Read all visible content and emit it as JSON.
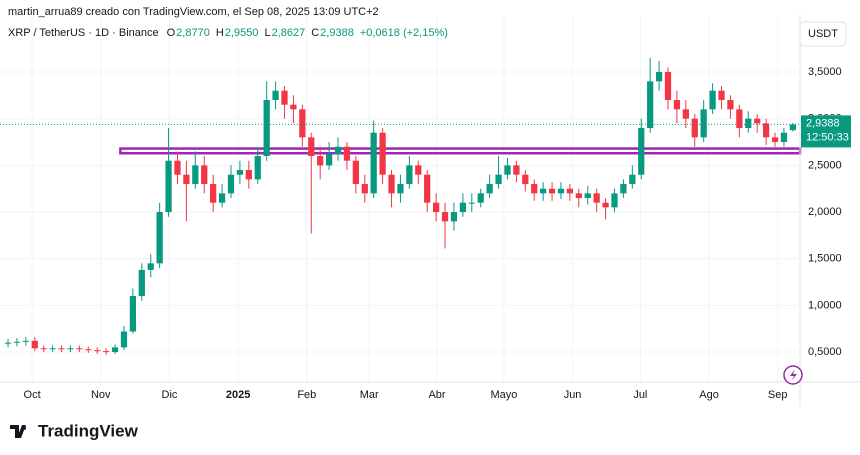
{
  "chart_data": {
    "type": "candlestick",
    "credit": "martin_arrua89 creado con TradingView.com, el Sep 08, 2025 13:09 UTC+2",
    "symbol": "XRP / TetherUS · 1D · Binance",
    "ohlc_header": [
      {
        "key": "O",
        "text": "2,8770"
      },
      {
        "key": "H",
        "text": "2,9550"
      },
      {
        "key": "L",
        "text": "2,8627"
      },
      {
        "key": "C",
        "text": "2,9388"
      }
    ],
    "change": "+0,0618 (+2,15%)",
    "currency": "USDT",
    "brand": "TradingView",
    "up_color": "#089981",
    "down_color": "#f23645",
    "open": [
      0.59,
      0.6,
      0.61,
      0.62,
      0.54,
      0.53,
      0.54,
      0.53,
      0.54,
      0.53,
      0.52,
      0.51,
      0.5,
      0.55,
      0.72,
      1.1,
      1.38,
      1.45,
      2.0,
      2.55,
      2.4,
      2.3,
      2.5,
      2.3,
      2.1,
      2.2,
      2.4,
      2.45,
      2.35,
      2.6,
      3.2,
      3.3,
      3.15,
      3.1,
      2.8,
      2.6,
      2.5,
      2.62,
      2.7,
      2.55,
      2.3,
      2.2,
      2.85,
      2.4,
      2.2,
      2.3,
      2.5,
      2.4,
      2.1,
      2.0,
      1.9,
      2.0,
      2.1,
      2.1,
      2.2,
      2.3,
      2.4,
      2.5,
      2.4,
      2.3,
      2.2,
      2.25,
      2.2,
      2.25,
      2.2,
      2.15,
      2.2,
      2.1,
      2.05,
      2.2,
      2.3,
      2.4,
      2.9,
      3.4,
      3.5,
      3.2,
      3.1,
      3.0,
      2.8,
      3.1,
      3.3,
      3.2,
      3.1,
      2.9,
      3.0,
      2.95,
      2.8,
      2.75,
      2.877
    ],
    "high": [
      0.64,
      0.65,
      0.66,
      0.66,
      0.57,
      0.57,
      0.57,
      0.57,
      0.57,
      0.56,
      0.55,
      0.54,
      0.58,
      0.78,
      1.18,
      1.45,
      1.55,
      2.1,
      2.9,
      2.65,
      2.55,
      2.65,
      2.6,
      2.4,
      2.3,
      2.5,
      2.55,
      2.55,
      2.7,
      3.4,
      3.4,
      3.35,
      3.25,
      3.15,
      2.85,
      2.7,
      2.75,
      2.8,
      2.75,
      2.6,
      2.4,
      2.98,
      2.9,
      2.45,
      2.4,
      2.6,
      2.55,
      2.45,
      2.2,
      2.1,
      2.1,
      2.2,
      2.2,
      2.25,
      2.4,
      2.6,
      2.58,
      2.55,
      2.45,
      2.35,
      2.32,
      2.32,
      2.32,
      2.3,
      2.25,
      2.28,
      2.25,
      2.15,
      2.25,
      2.35,
      2.5,
      3.0,
      3.65,
      3.62,
      3.55,
      3.3,
      3.2,
      3.05,
      3.2,
      3.38,
      3.35,
      3.25,
      3.15,
      3.08,
      3.05,
      3.0,
      2.85,
      2.9,
      2.955
    ],
    "low": [
      0.55,
      0.56,
      0.57,
      0.51,
      0.5,
      0.5,
      0.5,
      0.5,
      0.5,
      0.49,
      0.48,
      0.47,
      0.48,
      0.52,
      0.7,
      1.05,
      1.3,
      1.4,
      1.95,
      2.3,
      1.9,
      2.25,
      2.2,
      2.0,
      2.05,
      2.15,
      2.3,
      2.25,
      2.3,
      2.55,
      3.1,
      3.0,
      2.95,
      2.7,
      1.77,
      2.35,
      2.45,
      2.55,
      2.45,
      2.2,
      2.1,
      2.15,
      2.3,
      2.05,
      2.1,
      2.25,
      2.3,
      2.0,
      1.9,
      1.61,
      1.8,
      1.95,
      2.0,
      2.05,
      2.15,
      2.25,
      2.35,
      2.32,
      2.22,
      2.12,
      2.12,
      2.12,
      2.14,
      2.12,
      2.05,
      2.08,
      2.0,
      1.92,
      2.0,
      2.15,
      2.25,
      2.35,
      2.85,
      3.3,
      3.1,
      2.95,
      2.9,
      2.7,
      2.75,
      3.05,
      3.1,
      3.0,
      2.8,
      2.85,
      2.85,
      2.72,
      2.7,
      2.7,
      2.8627
    ],
    "close": [
      0.6,
      0.61,
      0.62,
      0.54,
      0.53,
      0.54,
      0.53,
      0.54,
      0.53,
      0.52,
      0.51,
      0.5,
      0.55,
      0.72,
      1.1,
      1.38,
      1.45,
      2.0,
      2.55,
      2.4,
      2.3,
      2.5,
      2.3,
      2.1,
      2.2,
      2.4,
      2.45,
      2.35,
      2.6,
      3.2,
      3.3,
      3.15,
      3.1,
      2.8,
      2.6,
      2.5,
      2.62,
      2.7,
      2.55,
      2.3,
      2.2,
      2.85,
      2.4,
      2.2,
      2.3,
      2.5,
      2.4,
      2.1,
      2.0,
      1.9,
      2.0,
      2.1,
      2.1,
      2.2,
      2.3,
      2.4,
      2.5,
      2.4,
      2.3,
      2.2,
      2.25,
      2.2,
      2.25,
      2.2,
      2.15,
      2.2,
      2.1,
      2.05,
      2.2,
      2.3,
      2.4,
      2.9,
      3.4,
      3.5,
      3.2,
      3.1,
      3.0,
      2.8,
      3.1,
      3.3,
      3.2,
      3.1,
      2.9,
      3.0,
      2.95,
      2.8,
      2.75,
      2.85,
      2.9388
    ],
    "xlim": [
      -0.9,
      88.8
    ],
    "xticks": [
      {
        "value": 2.7,
        "label": "Oct"
      },
      {
        "value": 10.4,
        "label": "Nov"
      },
      {
        "value": 18.1,
        "label": "Dic"
      },
      {
        "value": 25.8,
        "label": "2025"
      },
      {
        "value": 33.5,
        "label": "Feb"
      },
      {
        "value": 40.5,
        "label": "Mar"
      },
      {
        "value": 48.1,
        "label": "Abr"
      },
      {
        "value": 55.6,
        "label": "Mayo"
      },
      {
        "value": 63.3,
        "label": "Jun"
      },
      {
        "value": 70.9,
        "label": "Jul"
      },
      {
        "value": 78.6,
        "label": "Ago"
      },
      {
        "value": 86.3,
        "label": "Sep"
      }
    ],
    "ylim": [
      0.179,
      4.111
    ],
    "yticks": [
      {
        "value": 0.5,
        "label": "0,5000"
      },
      {
        "value": 1,
        "label": "1,0000"
      },
      {
        "value": 1.5,
        "label": "1,5000"
      },
      {
        "value": 2,
        "label": "2,0000"
      },
      {
        "value": 2.5,
        "label": "2,5000"
      },
      {
        "value": 3,
        "label": "3,0000"
      },
      {
        "value": 3.5,
        "label": "3,5000"
      }
    ],
    "grid": true,
    "last_price": {
      "value": 2.9388,
      "label": "2,9388"
    },
    "countdown": "12:50:33",
    "zone": {
      "from": 12.6,
      "low": 2.63,
      "high": 2.68,
      "color": "#9c27b0"
    }
  }
}
